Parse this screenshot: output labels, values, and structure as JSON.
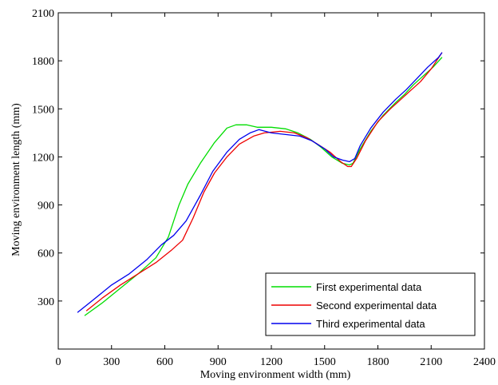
{
  "chart_data": {
    "type": "line",
    "title": "",
    "xlabel": "Moving environment width (mm)",
    "ylabel": "Moving environment length (mm)",
    "xlim": [
      0,
      2400
    ],
    "ylim": [
      0,
      2100
    ],
    "xticks": [
      0,
      300,
      600,
      900,
      1200,
      1500,
      1800,
      2100,
      2400
    ],
    "yticks": [
      300,
      600,
      900,
      1200,
      1500,
      1800,
      2100
    ],
    "xtick_labels": [
      "0",
      "300",
      "600",
      "900",
      "1200",
      "1500",
      "1800",
      "2100",
      "2400"
    ],
    "ytick_labels": [
      "300",
      "600",
      "900",
      "1200",
      "1500",
      "1800",
      "2100"
    ],
    "grid": false,
    "legend_position": "bottom-right",
    "series": [
      {
        "name": "First experimental data",
        "color": "#00dd00",
        "x": [
          150,
          250,
          350,
          450,
          550,
          620,
          680,
          730,
          800,
          880,
          950,
          1000,
          1060,
          1120,
          1200,
          1280,
          1350,
          1420,
          1480,
          1540,
          1600,
          1640,
          1660,
          1700,
          1760,
          1830,
          1900,
          1950,
          2000,
          2060,
          2110,
          2160
        ],
        "y": [
          210,
          290,
          380,
          470,
          570,
          700,
          900,
          1030,
          1160,
          1290,
          1380,
          1400,
          1400,
          1385,
          1385,
          1375,
          1350,
          1310,
          1260,
          1200,
          1160,
          1150,
          1160,
          1250,
          1360,
          1460,
          1540,
          1590,
          1650,
          1710,
          1760,
          1820
        ]
      },
      {
        "name": "Second experimental data",
        "color": "#ee0000",
        "x": [
          160,
          250,
          350,
          450,
          550,
          640,
          700,
          760,
          820,
          880,
          950,
          1020,
          1100,
          1160,
          1250,
          1330,
          1400,
          1460,
          1530,
          1590,
          1630,
          1650,
          1680,
          1730,
          1800,
          1870,
          1930,
          1980,
          2040,
          2100,
          2160
        ],
        "y": [
          240,
          320,
          400,
          470,
          540,
          620,
          680,
          820,
          980,
          1100,
          1200,
          1280,
          1330,
          1350,
          1360,
          1350,
          1320,
          1280,
          1230,
          1170,
          1140,
          1140,
          1190,
          1300,
          1420,
          1500,
          1560,
          1610,
          1670,
          1750,
          1850
        ]
      },
      {
        "name": "Third experimental data",
        "color": "#0000ee",
        "x": [
          110,
          200,
          300,
          400,
          500,
          580,
          650,
          720,
          800,
          870,
          950,
          1020,
          1080,
          1130,
          1200,
          1280,
          1360,
          1430,
          1500,
          1550,
          1600,
          1640,
          1670,
          1700,
          1760,
          1830,
          1900,
          1960,
          2020,
          2080,
          2140,
          2160
        ],
        "y": [
          230,
          310,
          400,
          470,
          560,
          650,
          710,
          800,
          960,
          1110,
          1230,
          1310,
          1350,
          1370,
          1350,
          1340,
          1330,
          1300,
          1250,
          1200,
          1180,
          1170,
          1190,
          1270,
          1380,
          1480,
          1560,
          1620,
          1690,
          1760,
          1820,
          1850
        ]
      }
    ]
  }
}
